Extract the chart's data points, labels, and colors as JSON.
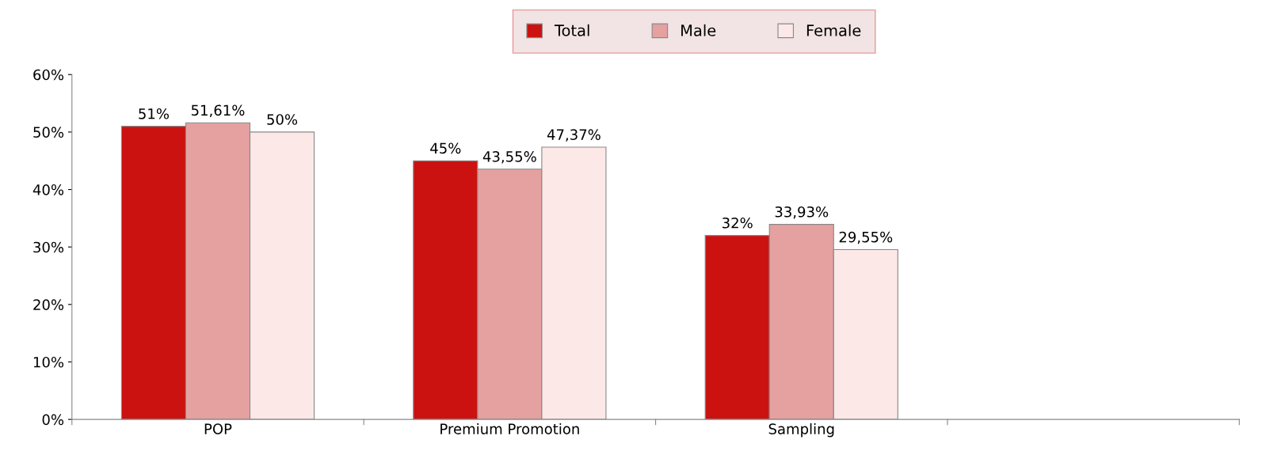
{
  "chart_data": {
    "type": "bar",
    "categories": [
      "POP",
      "Premium Promotion",
      "Sampling",
      null
    ],
    "series": [
      {
        "name": "Total",
        "color": "#cc1111",
        "values": [
          51,
          45,
          32,
          null
        ],
        "value_labels": [
          "51%",
          "45%",
          "32%",
          null
        ]
      },
      {
        "name": "Male",
        "color": "#e5a1a0",
        "values": [
          51.61,
          43.55,
          33.93,
          null
        ],
        "value_labels": [
          "51,61%",
          "43,55%",
          "33,93%",
          null
        ]
      },
      {
        "name": "Female",
        "color": "#fde8e8",
        "values": [
          50,
          47.37,
          29.55,
          null
        ],
        "value_labels": [
          "50%",
          "47,37%",
          "29,55%",
          null
        ]
      }
    ],
    "ylim": [
      0,
      60
    ],
    "yticks": [
      {
        "value": 0,
        "label": "0%"
      },
      {
        "value": 10,
        "label": "10%"
      },
      {
        "value": 20,
        "label": "20%"
      },
      {
        "value": 30,
        "label": "30%"
      },
      {
        "value": 40,
        "label": "40%"
      },
      {
        "value": 50,
        "label": "50%"
      },
      {
        "value": 60,
        "label": "60%"
      }
    ],
    "legend": "top",
    "grid": false
  }
}
